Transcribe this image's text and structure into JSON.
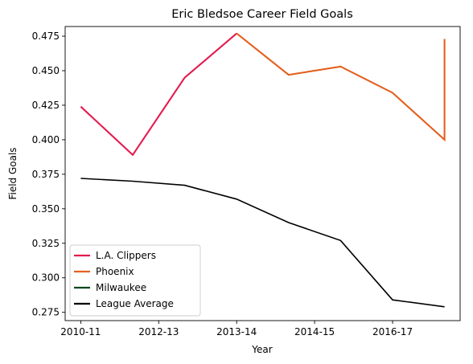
{
  "chart_data": {
    "type": "line",
    "title": "Eric Bledsoe Career Field Goals",
    "xlabel": "Year",
    "ylabel": "Field Goals",
    "x_ticks": [
      "2010-11",
      "2012-13",
      "2013-14",
      "2014-15",
      "2016-17"
    ],
    "xlim": [
      -0.3,
      7.3
    ],
    "ylim": [
      0.269,
      0.482
    ],
    "y_ticks": [
      0.275,
      0.3,
      0.325,
      0.35,
      0.375,
      0.4,
      0.425,
      0.45,
      0.475
    ],
    "y_tick_labels": [
      "0.275",
      "0.300",
      "0.325",
      "0.350",
      "0.375",
      "0.400",
      "0.425",
      "0.450",
      "0.475"
    ],
    "grid": false,
    "legend_position": "lower-left",
    "series": [
      {
        "name": "L.A. Clippers",
        "color": "#e31b4e",
        "x": [
          0,
          1,
          2,
          3
        ],
        "y": [
          0.424,
          0.389,
          0.445,
          0.477
        ]
      },
      {
        "name": "Phoenix",
        "color": "#e3601e",
        "x": [
          3,
          4,
          5,
          6,
          7,
          7
        ],
        "y": [
          0.477,
          0.447,
          0.453,
          0.434,
          0.4,
          0.473
        ]
      },
      {
        "name": "Milwaukee",
        "color": "#00471b",
        "x": [],
        "y": []
      },
      {
        "name": "League Average",
        "color": "#000000",
        "x": [
          0,
          1,
          2,
          3,
          4,
          5,
          6,
          7
        ],
        "y": [
          0.372,
          0.37,
          0.367,
          0.357,
          0.34,
          0.327,
          0.284,
          0.279
        ]
      }
    ]
  }
}
